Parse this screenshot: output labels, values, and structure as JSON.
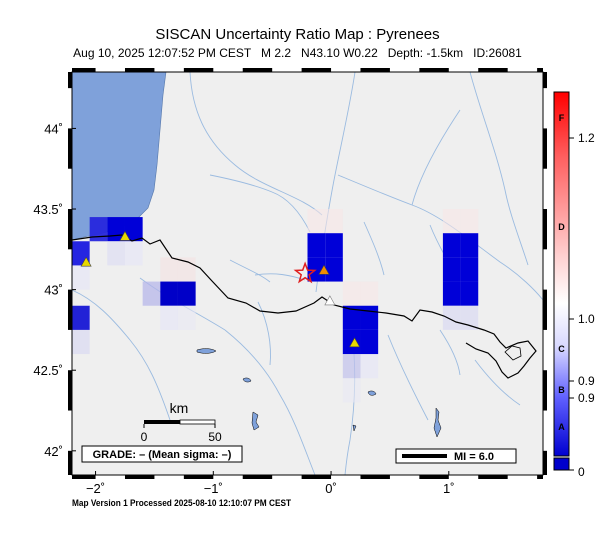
{
  "map": {
    "title": "SISCAN Uncertainty Ratio Map : Pyrenees",
    "subtitle": "Aug 10, 2025 12:07:52 PM CEST   M 2.2   N43.10 W0.22   Depth: -1.5km   ID:26081",
    "footer": "Map Version 1 Processed 2025-08-10 12:10:07 PM CEST",
    "extent": {
      "lon": [
        -2.2,
        1.8
      ],
      "lat": [
        41.85,
        44.35
      ]
    },
    "lat_ticks": [
      {
        "value": 44.0,
        "label": "44˚"
      },
      {
        "value": 43.5,
        "label": "43.5˚"
      },
      {
        "value": 43.0,
        "label": "43˚"
      },
      {
        "value": 42.5,
        "label": "42.5˚"
      },
      {
        "value": 42.0,
        "label": "42˚"
      }
    ],
    "lon_ticks": [
      {
        "value": -2,
        "label": "−2˚"
      },
      {
        "value": -1,
        "label": "−1˚"
      },
      {
        "value": 0,
        "label": "0˚"
      },
      {
        "value": 1,
        "label": "1˚"
      }
    ],
    "grade_label": "GRADE: – (Mean sigma: –)",
    "mi_label": "MI = 6.0",
    "scalebar": {
      "unit": "km",
      "labels": [
        "0",
        "50"
      ]
    },
    "epicenter": {
      "lon": -0.22,
      "lat": 43.1
    },
    "stations": [
      {
        "lon": -2.08,
        "lat": 43.17,
        "color": "#e8d800"
      },
      {
        "lon": -1.75,
        "lat": 43.33,
        "color": "#e8d800"
      },
      {
        "lon": -0.06,
        "lat": 43.12,
        "color": "#f08c00"
      },
      {
        "lon": -0.01,
        "lat": 42.93,
        "color": "#ffffff"
      },
      {
        "lon": 0.2,
        "lat": 42.67,
        "color": "#e8d800"
      }
    ],
    "grid_cells": [
      {
        "lon": -2.2,
        "lat": 43.15,
        "level": 0.95,
        "color": "#2020e0"
      },
      {
        "lon": -2.05,
        "lat": 43.3,
        "level": 0.9,
        "color": "#2828dc"
      },
      {
        "lon": -1.9,
        "lat": 43.3,
        "level": 1.0,
        "color": "#0000d8"
      },
      {
        "lon": -1.9,
        "lat": 43.15,
        "level": 0.15,
        "color": "#dcdcf4"
      },
      {
        "lon": -1.75,
        "lat": 43.3,
        "level": 1.0,
        "color": "#0000d8"
      },
      {
        "lon": -1.75,
        "lat": 43.15,
        "level": 0.1,
        "color": "#e4e4f6"
      },
      {
        "lon": -2.2,
        "lat": 43.0,
        "level": 0.1,
        "color": "#e4e4f6"
      },
      {
        "lon": -2.2,
        "lat": 42.75,
        "level": 0.9,
        "color": "#1818d4"
      },
      {
        "lon": -2.2,
        "lat": 42.6,
        "level": 0.2,
        "color": "#d8d8f2"
      },
      {
        "lon": -1.6,
        "lat": 42.9,
        "level": 0.35,
        "color": "#b4b4ea"
      },
      {
        "lon": -1.45,
        "lat": 43.05,
        "level": 0.1,
        "color": "#f4e0e0"
      },
      {
        "lon": -1.3,
        "lat": 43.05,
        "level": 0.1,
        "color": "#f4e0e0"
      },
      {
        "lon": -1.45,
        "lat": 42.9,
        "level": 1.0,
        "color": "#0000c8"
      },
      {
        "lon": -1.3,
        "lat": 42.9,
        "level": 1.0,
        "color": "#0000c8"
      },
      {
        "lon": -1.45,
        "lat": 42.75,
        "level": 0.1,
        "color": "#e4e4f6"
      },
      {
        "lon": -1.3,
        "lat": 42.75,
        "level": 0.1,
        "color": "#e8e8f4"
      },
      {
        "lon": -0.2,
        "lat": 43.35,
        "level": 0.1,
        "color": "#f6e6e6"
      },
      {
        "lon": -0.05,
        "lat": 43.35,
        "level": 0.1,
        "color": "#f6e6e6"
      },
      {
        "lon": -0.2,
        "lat": 43.2,
        "level": 1.0,
        "color": "#0000d8"
      },
      {
        "lon": -0.05,
        "lat": 43.2,
        "level": 1.0,
        "color": "#0000d8"
      },
      {
        "lon": -0.2,
        "lat": 43.05,
        "level": 1.0,
        "color": "#0000d8"
      },
      {
        "lon": -0.05,
        "lat": 43.05,
        "level": 1.0,
        "color": "#0000d8"
      },
      {
        "lon": 0.1,
        "lat": 42.9,
        "level": 0.1,
        "color": "#f6e6e6"
      },
      {
        "lon": 0.25,
        "lat": 42.9,
        "level": 0.1,
        "color": "#f6e6e6"
      },
      {
        "lon": 0.1,
        "lat": 42.75,
        "level": 1.0,
        "color": "#0000d8"
      },
      {
        "lon": 0.25,
        "lat": 42.75,
        "level": 1.0,
        "color": "#0000d8"
      },
      {
        "lon": 0.1,
        "lat": 42.6,
        "level": 1.0,
        "color": "#0000d8"
      },
      {
        "lon": 0.25,
        "lat": 42.6,
        "level": 1.0,
        "color": "#0000d8"
      },
      {
        "lon": 0.1,
        "lat": 42.45,
        "level": 0.3,
        "color": "#c0c0ec"
      },
      {
        "lon": 0.25,
        "lat": 42.45,
        "level": 0.1,
        "color": "#e4e4f6"
      },
      {
        "lon": 0.1,
        "lat": 42.3,
        "level": 0.1,
        "color": "#e8e8f4"
      },
      {
        "lon": 0.95,
        "lat": 43.35,
        "level": 0.1,
        "color": "#f6e6e6"
      },
      {
        "lon": 1.1,
        "lat": 43.35,
        "level": 0.1,
        "color": "#f6e6e6"
      },
      {
        "lon": 0.95,
        "lat": 43.2,
        "level": 1.0,
        "color": "#0000d8"
      },
      {
        "lon": 1.1,
        "lat": 43.2,
        "level": 1.0,
        "color": "#0000d8"
      },
      {
        "lon": 0.95,
        "lat": 43.05,
        "level": 1.0,
        "color": "#0000d8"
      },
      {
        "lon": 1.1,
        "lat": 43.05,
        "level": 1.0,
        "color": "#0000d8"
      },
      {
        "lon": 0.95,
        "lat": 42.9,
        "level": 1.0,
        "color": "#0000d8"
      },
      {
        "lon": 1.1,
        "lat": 42.9,
        "level": 1.0,
        "color": "#0000d8"
      },
      {
        "lon": 0.95,
        "lat": 42.75,
        "level": 0.2,
        "color": "#d8d8f2"
      },
      {
        "lon": 1.1,
        "lat": 42.75,
        "level": 0.2,
        "color": "#d8d8f2"
      }
    ],
    "colors": {
      "land": "#efefef",
      "sea": "#7fa1da",
      "river": "#9bbbe0",
      "border": "#000000",
      "epicenter": "#e02020"
    }
  },
  "colorbar": {
    "letters": [
      "F",
      "D",
      "C",
      "B",
      "A"
    ],
    "values": [
      "1.2",
      "1.0",
      "0.9",
      "0.9",
      "0"
    ]
  }
}
